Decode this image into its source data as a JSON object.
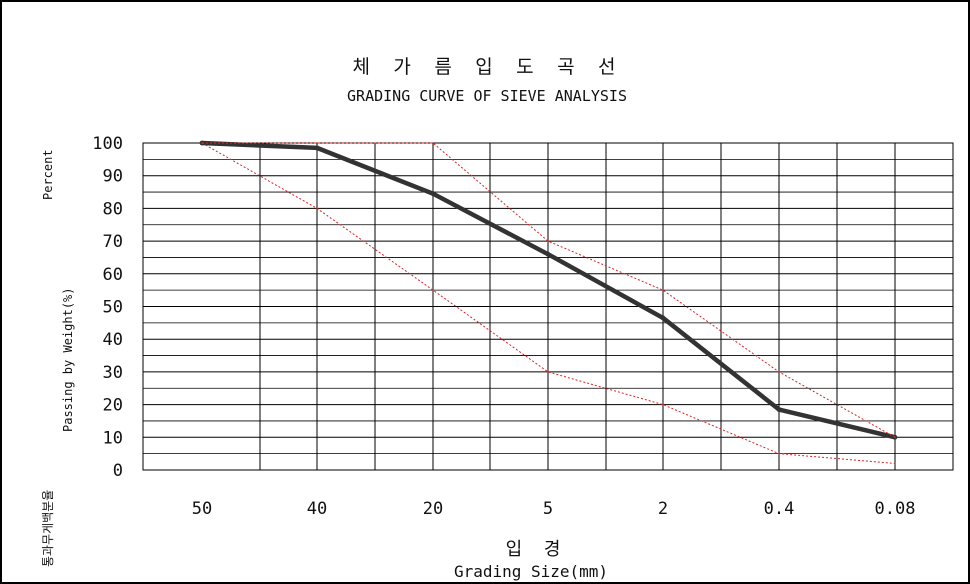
{
  "chart_data": {
    "type": "line",
    "title": "체 가 름 입 도 곡 선",
    "subtitle": "GRADING CURVE OF SIEVE ANALYSIS",
    "xlabel_kr": "입  경",
    "xlabel": "Grading Size(mm)",
    "ylabel_top": "Percent",
    "ylabel": "Passing by Weight(%)",
    "ylabel_kr": "통과무게백분율",
    "categories": [
      "50",
      "40",
      "20",
      "5",
      "2",
      "0.4",
      "0.08"
    ],
    "yticks": [
      "100",
      "90",
      "80",
      "70",
      "60",
      "50",
      "40",
      "30",
      "20",
      "10",
      "0"
    ],
    "ylim": [
      0,
      100
    ],
    "grid": true,
    "series": [
      {
        "values": [
          100,
          98.5,
          84.5,
          66,
          46.5,
          18.5,
          10
        ],
        "color": "#333333",
        "style": "thick solid"
      },
      {
        "values": [
          100,
          100,
          100,
          70,
          55,
          30,
          10
        ],
        "color": "#e02020",
        "style": "dotted"
      },
      {
        "values": [
          100,
          80,
          55,
          30,
          20,
          5,
          2
        ],
        "color": "#e02020",
        "style": "dotted"
      }
    ]
  }
}
